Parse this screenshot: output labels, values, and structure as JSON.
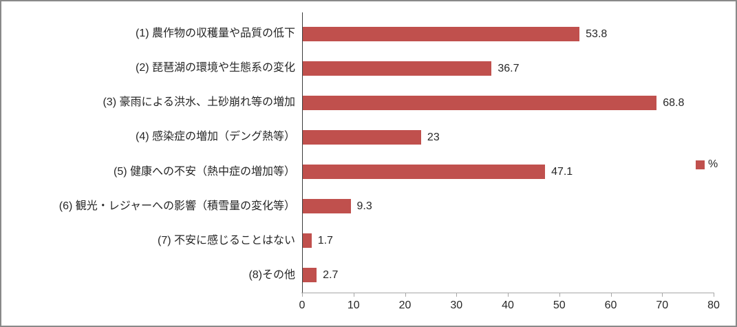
{
  "chart_data": {
    "type": "bar",
    "orientation": "horizontal",
    "title": "",
    "categories": [
      "(1) 農作物の収穫量や品質の低下",
      "(2) 琵琶湖の環境や生態系の変化",
      "(3) 豪雨による洪水、土砂崩れ等の増加",
      "(4) 感染症の増加（デング熱等）",
      "(5) 健康への不安（熱中症の増加等）",
      "(6) 観光・レジャーへの影響（積雪量の変化等）",
      "(7) 不安に感じることはない",
      "(8)その他"
    ],
    "values": [
      53.8,
      36.7,
      68.8,
      23,
      47.1,
      9.3,
      1.7,
      2.7
    ],
    "value_labels": [
      "53.8",
      "36.7",
      "68.8",
      "23",
      "47.1",
      "9.3",
      "1.7",
      "2.7"
    ],
    "legend": "%",
    "legend_position": "right-middle",
    "xlim": [
      0,
      80
    ],
    "x_ticks": [
      "0",
      "10",
      "20",
      "30",
      "40",
      "50",
      "60",
      "70",
      "80"
    ],
    "grid": false
  },
  "colors": {
    "bar": "#C0504D",
    "value_axis_line": "#A6A6A6",
    "category_axis_line": "#3B3B3B",
    "text": "#262626",
    "frame_border": "#898989",
    "background": "#FFFFFF"
  }
}
